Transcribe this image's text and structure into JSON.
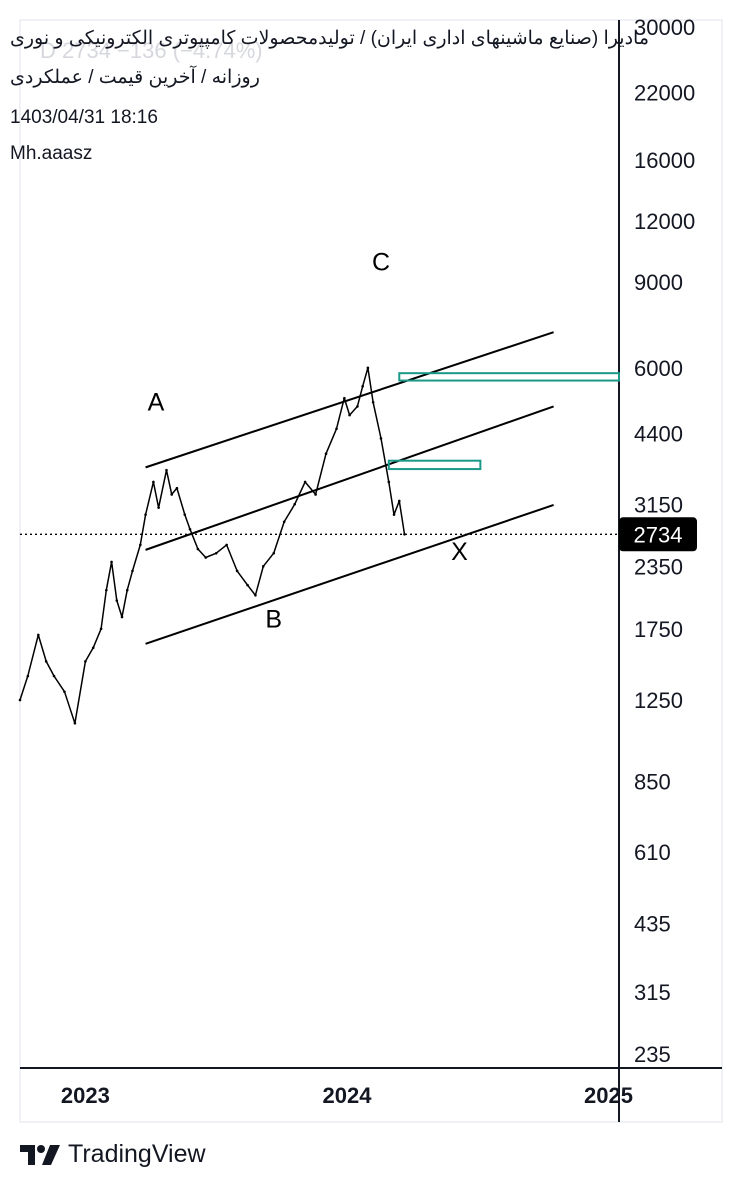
{
  "header": {
    "title": "مادیرا (صنایع ماشینهای اداری ایران) / تولیدمحصولات کامپیوتری الکترونیکی و نوری",
    "subtitle": "روزانه / آخرین قیمت / عملکردی",
    "timestamp": "1403/04/31 18:16",
    "author": "Mh.aaasz",
    "watermark": "D  2734  −136 (−4.74%)"
  },
  "brand": {
    "name": "TradingView",
    "logo_icon": "tradingview-logo-icon"
  },
  "colors": {
    "price": "#000000",
    "channel": "#000000",
    "zone": "#1a9988",
    "axis": "#131722",
    "last_price_bg": "#000000"
  },
  "chart_data": {
    "type": "line",
    "symbol": "مادیرا",
    "y_scale": "log",
    "ylim": [
      220,
      31000
    ],
    "y_ticks": [
      30000,
      22000,
      16000,
      12000,
      9000,
      6000,
      4400,
      3150,
      2350,
      1750,
      1250,
      850,
      610,
      435,
      315,
      235
    ],
    "x_ticks": [
      "2023",
      "2024",
      "2025"
    ],
    "xlim": [
      2022.75,
      2025.04
    ],
    "last_price": 2734,
    "series": [
      {
        "values": [
          [
            2022.75,
            1250
          ],
          [
            2022.78,
            1400
          ],
          [
            2022.82,
            1700
          ],
          [
            2022.85,
            1500
          ],
          [
            2022.88,
            1400
          ],
          [
            2022.92,
            1300
          ],
          [
            2022.96,
            1120
          ],
          [
            2023.0,
            1500
          ],
          [
            2023.03,
            1600
          ],
          [
            2023.06,
            1750
          ],
          [
            2023.08,
            2100
          ],
          [
            2023.1,
            2400
          ],
          [
            2023.12,
            2000
          ],
          [
            2023.14,
            1850
          ],
          [
            2023.16,
            2100
          ],
          [
            2023.18,
            2300
          ],
          [
            2023.21,
            2600
          ],
          [
            2023.23,
            3000
          ],
          [
            2023.26,
            3500
          ],
          [
            2023.28,
            3100
          ],
          [
            2023.31,
            3700
          ],
          [
            2023.33,
            3300
          ],
          [
            2023.35,
            3400
          ],
          [
            2023.38,
            3000
          ],
          [
            2023.4,
            2800
          ],
          [
            2023.43,
            2550
          ],
          [
            2023.46,
            2450
          ],
          [
            2023.5,
            2500
          ],
          [
            2023.54,
            2600
          ],
          [
            2023.58,
            2300
          ],
          [
            2023.62,
            2150
          ],
          [
            2023.65,
            2050
          ],
          [
            2023.68,
            2350
          ],
          [
            2023.72,
            2500
          ],
          [
            2023.76,
            2900
          ],
          [
            2023.8,
            3150
          ],
          [
            2023.84,
            3500
          ],
          [
            2023.88,
            3300
          ],
          [
            2023.92,
            4000
          ],
          [
            2023.96,
            4500
          ],
          [
            2023.99,
            5200
          ],
          [
            2024.01,
            4800
          ],
          [
            2024.04,
            5000
          ],
          [
            2024.06,
            5500
          ],
          [
            2024.08,
            6000
          ],
          [
            2024.1,
            5100
          ],
          [
            2024.13,
            4300
          ],
          [
            2024.16,
            3500
          ],
          [
            2024.18,
            3000
          ],
          [
            2024.2,
            3200
          ],
          [
            2024.22,
            2734
          ]
        ]
      }
    ],
    "channel_lines": [
      {
        "start": [
          2023.23,
          3750
        ],
        "end": [
          2024.79,
          7100
        ]
      },
      {
        "start": [
          2023.23,
          2540
        ],
        "end": [
          2024.79,
          5000
        ]
      },
      {
        "start": [
          2023.23,
          1630
        ],
        "end": [
          2024.79,
          3140
        ]
      }
    ],
    "zones": [
      {
        "low": 5650,
        "high": 5850,
        "x_start": 2024.2
      },
      {
        "low": 3720,
        "high": 3870,
        "x_start": 2024.16,
        "x_end": 2024.51
      }
    ],
    "annotations": [
      {
        "label": "A",
        "x": 2023.27,
        "y": 4900
      },
      {
        "label": "B",
        "x": 2023.72,
        "y": 1760
      },
      {
        "label": "C",
        "x": 2024.13,
        "y": 9500
      },
      {
        "label": "X",
        "x": 2024.43,
        "y": 2420
      }
    ]
  }
}
